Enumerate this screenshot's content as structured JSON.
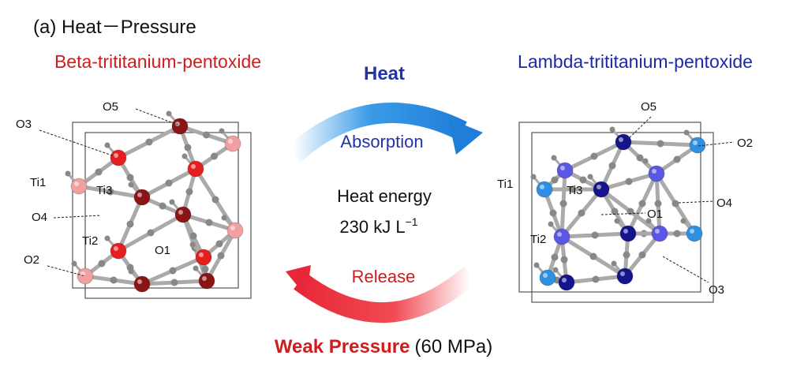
{
  "header": {
    "title": "(a) Heat－Pressure"
  },
  "left": {
    "name": "Beta-trititanium-pentoxide",
    "atoms": [
      "O5",
      "O3",
      "Ti1",
      "Ti3",
      "O4",
      "Ti2",
      "O1",
      "O2"
    ]
  },
  "right": {
    "name": "Lambda-trititanium-pentoxide",
    "atoms": [
      "O5",
      "O2",
      "Ti1",
      "Ti3",
      "O4",
      "O1",
      "Ti2",
      "O3"
    ]
  },
  "center": {
    "top_label": "Heat",
    "top_arrow_label": "Absorption",
    "energy_line1": "Heat energy",
    "energy_value": "230 kJ L",
    "energy_exponent": "−1",
    "bottom_arrow_label": "Release",
    "bottom_label": "Weak Pressure",
    "bottom_label_note": "(60 MPa)"
  }
}
